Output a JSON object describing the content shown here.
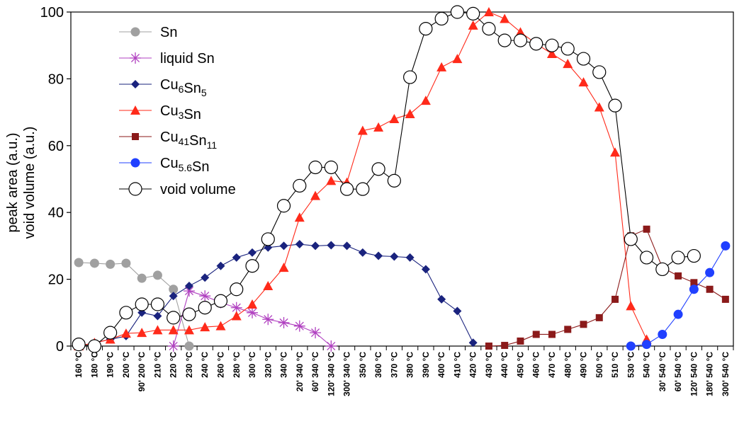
{
  "chart_data": {
    "type": "line",
    "title": "",
    "xlabel": "",
    "ylabel": [
      "peak area (a.u.)",
      "void volume (a.u.)"
    ],
    "ylim": [
      0,
      100
    ],
    "yticks": [
      0,
      20,
      40,
      60,
      80,
      100
    ],
    "grid": false,
    "legend_position": "top-left",
    "categories": [
      "160 °C",
      "180 °C",
      "190 °C",
      "200 °C",
      "90' 200 °C",
      "210 °C",
      "220 °C",
      "230 °C",
      "240 °C",
      "260 °C",
      "280 °C",
      "300 °C",
      "320 °C",
      "340 °C",
      "20' 340 °C",
      "60' 340 °C",
      "120' 340 °C",
      "300' 340 °C",
      "350 °C",
      "360 °C",
      "370 °C",
      "380 °C",
      "390 °C",
      "400 °C",
      "410 °C",
      "420 °C",
      "430 °C",
      "440 °C",
      "450 °C",
      "460 °C",
      "470 °C",
      "480 °C",
      "490 °C",
      "500 °C",
      "510 °C",
      "530 °C",
      "540 °C",
      "30' 540 °C",
      "60' 540 °C",
      "120' 540 °C",
      "180' 540 °C",
      "300' 540 °C"
    ],
    "series": [
      {
        "name": "Sn",
        "color": "#a0a0a0",
        "marker": "circle-filled",
        "values": [
          25,
          24.8,
          24.5,
          24.8,
          20.3,
          21.2,
          17,
          0,
          null,
          null,
          null,
          null,
          null,
          null,
          null,
          null,
          null,
          null,
          null,
          null,
          null,
          null,
          null,
          null,
          null,
          null,
          null,
          null,
          null,
          null,
          null,
          null,
          null,
          null,
          null,
          null,
          null,
          null,
          null,
          null,
          null,
          null
        ]
      },
      {
        "name": "liquid Sn",
        "color": "#b040c0",
        "marker": "asterisk",
        "values": [
          null,
          null,
          null,
          null,
          null,
          null,
          0,
          16.5,
          15,
          13,
          11.5,
          10,
          8,
          7,
          6,
          4,
          0,
          null,
          null,
          null,
          null,
          null,
          null,
          null,
          null,
          null,
          null,
          null,
          null,
          null,
          null,
          null,
          null,
          null,
          null,
          null,
          null,
          null,
          null,
          null,
          null,
          null
        ]
      },
      {
        "name": "Cu6Sn5",
        "label_base": [
          "Cu",
          "Sn"
        ],
        "label_subs": [
          "6",
          "5"
        ],
        "color": "#1a237e",
        "marker": "diamond",
        "values": [
          0,
          1,
          2,
          3,
          10,
          9,
          15,
          18,
          20.5,
          24,
          26.5,
          28,
          29.5,
          30,
          30.5,
          30,
          30.2,
          30,
          28,
          27,
          26.8,
          26.5,
          23,
          14,
          10.5,
          1,
          null,
          null,
          null,
          null,
          null,
          null,
          null,
          null,
          null,
          null,
          null,
          null,
          null,
          null,
          null,
          null
        ]
      },
      {
        "name": "Cu3Sn",
        "label_base": [
          "Cu",
          "Sn"
        ],
        "label_subs": [
          "3",
          ""
        ],
        "color": "#ff2a1a",
        "marker": "triangle",
        "values": [
          0,
          1,
          2,
          3.8,
          4,
          4.8,
          4.8,
          4.8,
          5.7,
          6,
          9,
          12.5,
          18,
          23.5,
          38.5,
          45,
          49.5,
          49,
          64.5,
          65.5,
          68,
          69.5,
          73.5,
          83.5,
          86,
          96,
          100,
          98,
          94,
          90.5,
          87.5,
          84.5,
          79,
          71.5,
          58,
          12,
          2,
          null,
          null,
          null,
          null,
          null
        ]
      },
      {
        "name": "Cu41Sn11",
        "label_base": [
          "Cu",
          "Sn"
        ],
        "label_subs": [
          "41",
          "11"
        ],
        "color": "#8b1a1a",
        "marker": "square",
        "values": [
          null,
          null,
          null,
          null,
          null,
          null,
          null,
          null,
          null,
          null,
          null,
          null,
          null,
          null,
          null,
          null,
          null,
          null,
          null,
          null,
          null,
          null,
          null,
          null,
          null,
          null,
          0,
          0.2,
          1.5,
          3.5,
          3.5,
          5,
          6.5,
          8.5,
          14,
          33,
          35,
          23.5,
          21,
          19,
          17,
          14
        ]
      },
      {
        "name": "Cu5.6Sn",
        "label_base": [
          "Cu",
          "Sn"
        ],
        "label_subs": [
          "5.6",
          ""
        ],
        "color": "#2040ff",
        "marker": "circle-filled",
        "values": [
          null,
          null,
          null,
          null,
          null,
          null,
          null,
          null,
          null,
          null,
          null,
          null,
          null,
          null,
          null,
          null,
          null,
          null,
          null,
          null,
          null,
          null,
          null,
          null,
          null,
          null,
          null,
          null,
          null,
          null,
          null,
          null,
          null,
          null,
          null,
          0,
          0.5,
          3.5,
          9.5,
          17,
          22,
          30
        ]
      },
      {
        "name": "void volume",
        "color": "#000000",
        "marker": "circle-open",
        "values": [
          0.5,
          0,
          4,
          10,
          12.5,
          12.5,
          8.5,
          9.5,
          11.5,
          13.5,
          17,
          24,
          32,
          42,
          48,
          53.5,
          53.5,
          47,
          47,
          53,
          49.5,
          80.5,
          95,
          98,
          100,
          99.5,
          95,
          91.5,
          91.5,
          90.5,
          90,
          89,
          86,
          82,
          72,
          32,
          26.5,
          23,
          26.5,
          27,
          null,
          null
        ]
      }
    ]
  }
}
